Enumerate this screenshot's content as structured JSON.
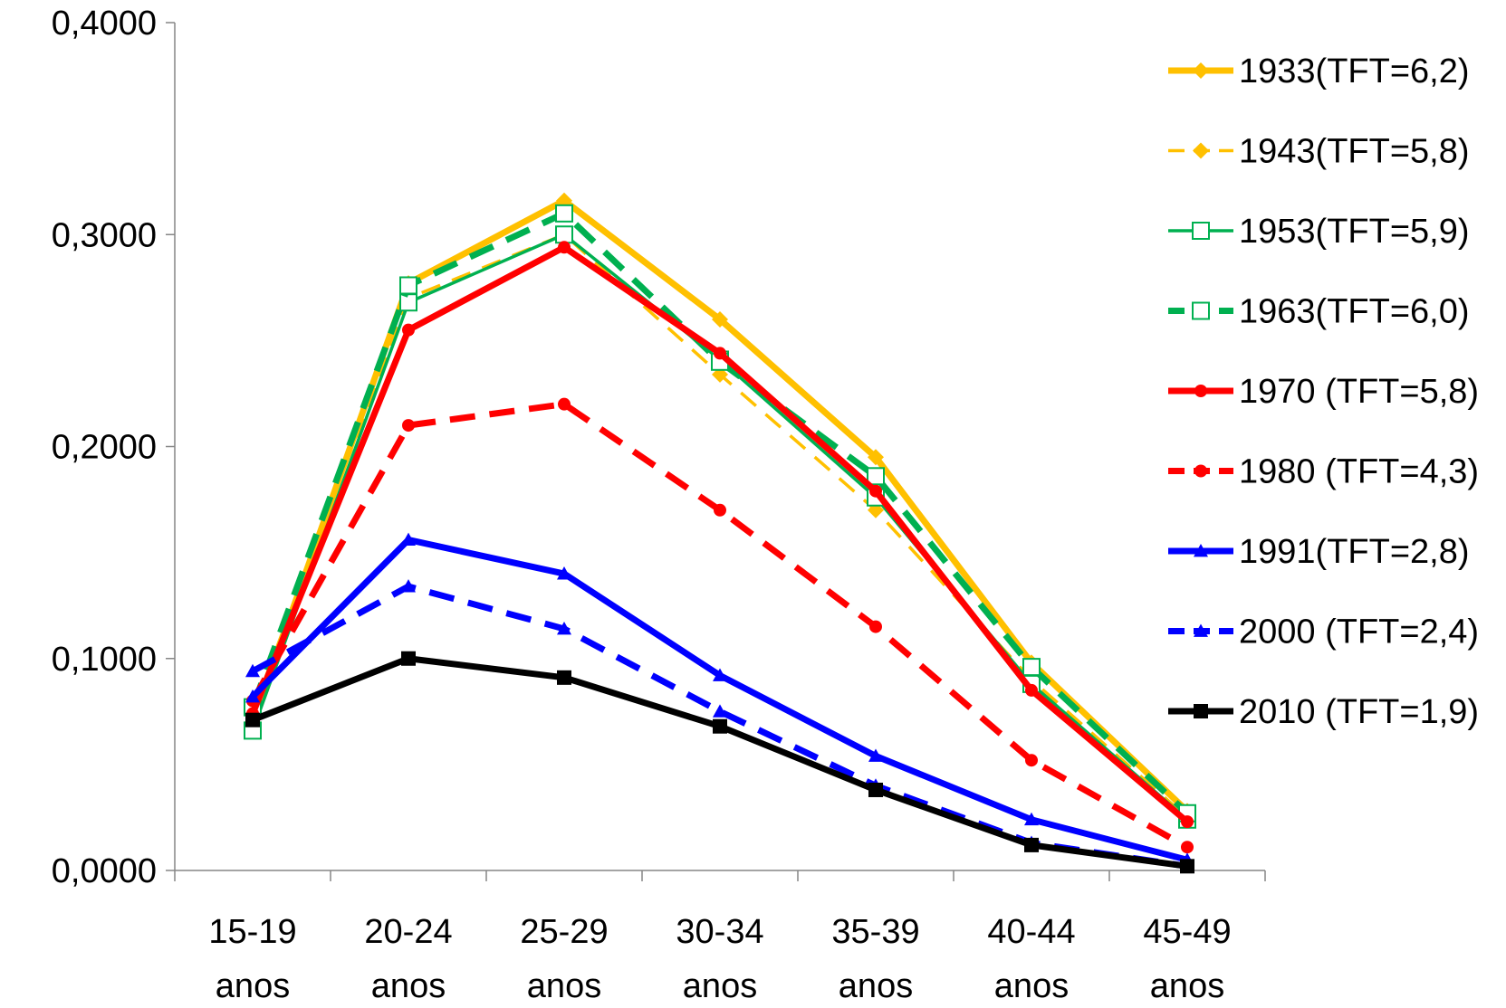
{
  "chart_data": {
    "type": "line",
    "title": "",
    "xlabel": "",
    "ylabel": "",
    "categories": [
      [
        "15-19",
        "anos"
      ],
      [
        "20-24",
        "anos"
      ],
      [
        "25-29",
        "anos"
      ],
      [
        "30-34",
        "anos"
      ],
      [
        "35-39",
        "anos"
      ],
      [
        "40-44",
        "anos"
      ],
      [
        "45-49",
        "anos"
      ]
    ],
    "ylim": [
      0,
      0.4
    ],
    "yticks": [
      "0,0000",
      "0,1000",
      "0,2000",
      "0,3000",
      "0,4000"
    ],
    "grid": false,
    "legend_position": "right",
    "series": [
      {
        "name": "1933(TFT=6,2)",
        "color": "#FFC000",
        "dash": "solid",
        "width": "thick",
        "marker": "diamond",
        "values": [
          0.07,
          0.277,
          0.316,
          0.26,
          0.195,
          0.098,
          0.028
        ]
      },
      {
        "name": "1943(TFT=5,8)",
        "color": "#FFC000",
        "dash": "dashed",
        "width": "thin",
        "marker": "diamond",
        "values": [
          0.075,
          0.27,
          0.3,
          0.234,
          0.17,
          0.09,
          0.025
        ]
      },
      {
        "name": "1953(TFT=5,9)",
        "color": "#00B050",
        "dash": "solid",
        "width": "thin",
        "marker": "square-open",
        "values": [
          0.066,
          0.268,
          0.3,
          0.241,
          0.176,
          0.088,
          0.024
        ]
      },
      {
        "name": "1963(TFT=6,0)",
        "color": "#00B050",
        "dash": "dashed",
        "width": "thick",
        "marker": "square-open",
        "values": [
          0.077,
          0.276,
          0.31,
          0.24,
          0.186,
          0.096,
          0.027
        ]
      },
      {
        "name": "1970 (TFT=5,8)",
        "color": "#FF0000",
        "dash": "solid",
        "width": "thick",
        "marker": "circle",
        "values": [
          0.074,
          0.255,
          0.294,
          0.244,
          0.179,
          0.085,
          0.023
        ]
      },
      {
        "name": "1980 (TFT=4,3)",
        "color": "#FF0000",
        "dash": "dashed",
        "width": "thick",
        "marker": "circle",
        "values": [
          0.08,
          0.21,
          0.22,
          0.17,
          0.115,
          0.052,
          0.011
        ]
      },
      {
        "name": "1991(TFT=2,8)",
        "color": "#0000FF",
        "dash": "solid",
        "width": "thick",
        "marker": "triangle",
        "values": [
          0.082,
          0.156,
          0.14,
          0.092,
          0.054,
          0.024,
          0.005
        ]
      },
      {
        "name": "2000 (TFT=2,4)",
        "color": "#0000FF",
        "dash": "dashed",
        "width": "thick",
        "marker": "triangle",
        "values": [
          0.094,
          0.134,
          0.114,
          0.075,
          0.04,
          0.013,
          0.002
        ]
      },
      {
        "name": "2010 (TFT=1,9)",
        "color": "#000000",
        "dash": "solid",
        "width": "thick",
        "marker": "square",
        "values": [
          0.071,
          0.1,
          0.091,
          0.068,
          0.038,
          0.012,
          0.002
        ]
      }
    ]
  }
}
